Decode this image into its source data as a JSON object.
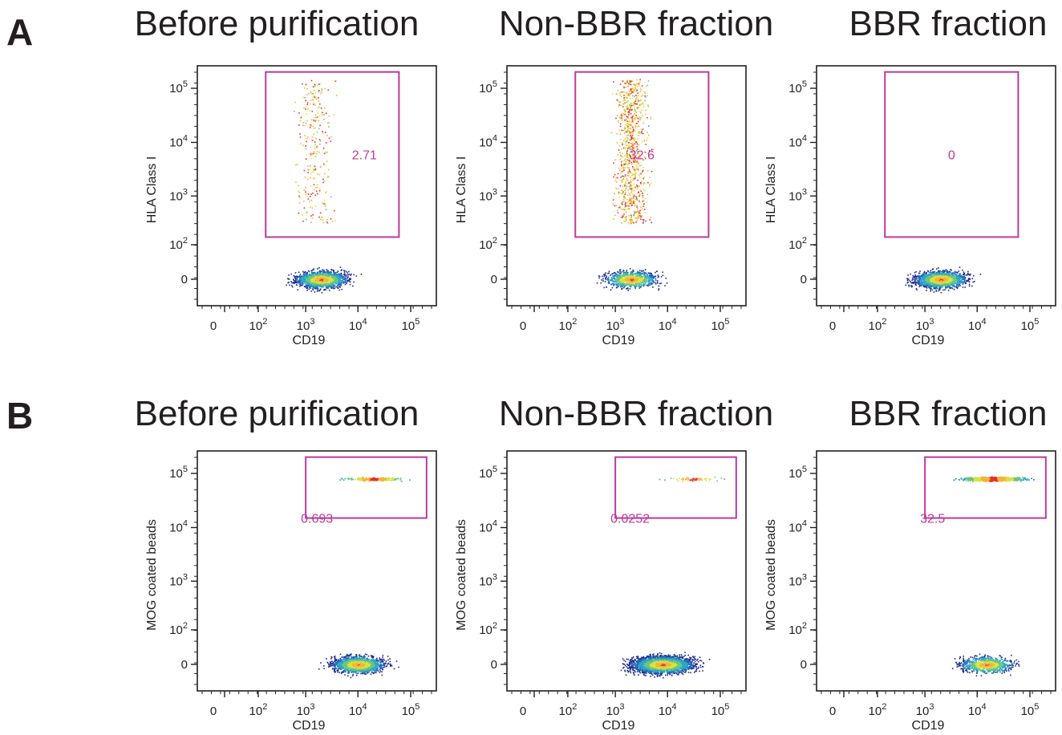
{
  "colors": {
    "gate": "#c0399b",
    "text": "#231f20",
    "density_scale": [
      "#1f2b8f",
      "#2166b4",
      "#2aa6c8",
      "#6cc67c",
      "#d9e241",
      "#f6b33a",
      "#e8302a"
    ]
  },
  "chart_data": [
    {
      "type": "scatter",
      "panel": "A",
      "title": "Before purification",
      "xlabel": "CD19",
      "ylabel": "HLA Class I",
      "x_ticks": [
        "0",
        "10^2",
        "10^3",
        "10^4",
        "10^5"
      ],
      "y_ticks": [
        "0",
        "10^2",
        "10^3",
        "10^4",
        "10^5"
      ],
      "scale": "biexponential",
      "gate": {
        "label": "2.71",
        "x_range": [
          150,
          60000
        ],
        "y_range": [
          150,
          200000
        ]
      },
      "populations": [
        {
          "name": "",
          "x_center": 2000,
          "y_center": 0,
          "density": "high"
        },
        {
          "name": "",
          "x_center": 1500,
          "y_range": [
            300,
            150000
          ],
          "density": "low",
          "banded": true
        }
      ]
    },
    {
      "type": "scatter",
      "panel": "A",
      "title": "Non-BBR fraction",
      "xlabel": "CD19",
      "ylabel": "HLA Class I",
      "x_ticks": [
        "0",
        "10^2",
        "10^3",
        "10^4",
        "10^5"
      ],
      "y_ticks": [
        "0",
        "10^2",
        "10^3",
        "10^4",
        "10^5"
      ],
      "scale": "biexponential",
      "gate": {
        "label": "32.6",
        "x_range": [
          150,
          60000
        ],
        "y_range": [
          150,
          200000
        ]
      },
      "populations": [
        {
          "name": "",
          "x_center": 2000,
          "y_center": 0,
          "density": "medium"
        },
        {
          "name": "",
          "x_center": 2000,
          "y_range": [
            300,
            150000
          ],
          "density": "medium",
          "banded": true
        }
      ]
    },
    {
      "type": "scatter",
      "panel": "A",
      "title": "BBR fraction",
      "xlabel": "CD19",
      "ylabel": "HLA Class I",
      "x_ticks": [
        "0",
        "10^2",
        "10^3",
        "10^4",
        "10^5"
      ],
      "y_ticks": [
        "0",
        "10^2",
        "10^3",
        "10^4",
        "10^5"
      ],
      "scale": "biexponential",
      "gate": {
        "label": "0",
        "x_range": [
          150,
          60000
        ],
        "y_range": [
          150,
          200000
        ]
      },
      "populations": [
        {
          "name": "",
          "x_center": 2000,
          "y_center": 0,
          "density": "high"
        }
      ]
    },
    {
      "type": "scatter",
      "panel": "B",
      "title": "Before purification",
      "xlabel": "CD19",
      "ylabel": "MOG coated beads",
      "x_ticks": [
        "0",
        "10^2",
        "10^3",
        "10^4",
        "10^5"
      ],
      "y_ticks": [
        "0",
        "10^2",
        "10^3",
        "10^4",
        "10^5"
      ],
      "scale": "biexponential",
      "gate": {
        "label": "0.693",
        "x_range": [
          1000,
          200000
        ],
        "y_range": [
          15000,
          200000
        ]
      },
      "populations": [
        {
          "name": "",
          "x_center": 10000,
          "y_center": 0,
          "density": "high"
        },
        {
          "name": "",
          "x_center": 20000,
          "y_center": 80000,
          "density": "low"
        }
      ]
    },
    {
      "type": "scatter",
      "panel": "B",
      "title": "Non-BBR fraction",
      "xlabel": "CD19",
      "ylabel": "MOG coated beads",
      "x_ticks": [
        "0",
        "10^2",
        "10^3",
        "10^4",
        "10^5"
      ],
      "y_ticks": [
        "0",
        "10^2",
        "10^3",
        "10^4",
        "10^5"
      ],
      "scale": "biexponential",
      "gate": {
        "label": "0.0252",
        "x_range": [
          1000,
          200000
        ],
        "y_range": [
          15000,
          200000
        ]
      },
      "populations": [
        {
          "name": "",
          "x_center": 8000,
          "y_center": 0,
          "density": "very high"
        },
        {
          "name": "",
          "x_center": 30000,
          "y_center": 80000,
          "density": "very low"
        }
      ]
    },
    {
      "type": "scatter",
      "panel": "B",
      "title": "BBR fraction",
      "xlabel": "CD19",
      "ylabel": "MOG coated beads",
      "x_ticks": [
        "0",
        "10^2",
        "10^3",
        "10^4",
        "10^5"
      ],
      "y_ticks": [
        "0",
        "10^2",
        "10^3",
        "10^4",
        "10^5"
      ],
      "scale": "biexponential",
      "gate": {
        "label": "32.5",
        "x_range": [
          1000,
          200000
        ],
        "y_range": [
          15000,
          200000
        ]
      },
      "populations": [
        {
          "name": "",
          "x_center": 15000,
          "y_center": 0,
          "density": "medium"
        },
        {
          "name": "",
          "x_center": 20000,
          "y_center": 80000,
          "density": "high"
        }
      ]
    }
  ]
}
